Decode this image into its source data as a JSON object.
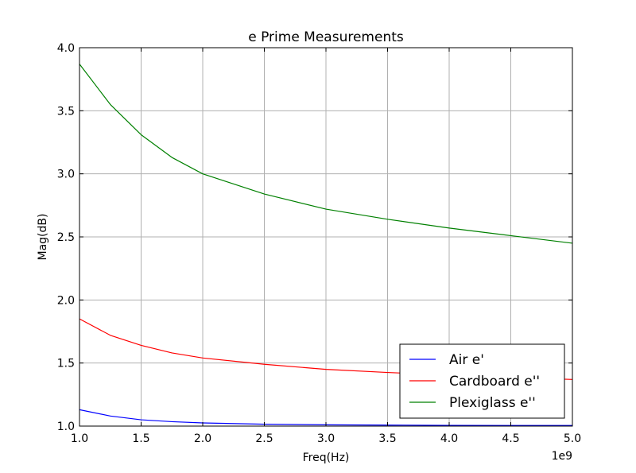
{
  "chart_data": {
    "type": "line",
    "title": "e Prime Measurements",
    "xlabel": "Freq(Hz)",
    "ylabel": "Mag(dB)",
    "x_offset_label": "1e9",
    "xlim": [
      1.0,
      5.0
    ],
    "ylim": [
      1.0,
      4.0
    ],
    "xticks": [
      "1.0",
      "1.5",
      "2.0",
      "2.5",
      "3.0",
      "3.5",
      "4.0",
      "4.5",
      "5.0"
    ],
    "yticks": [
      "1.0",
      "1.5",
      "2.0",
      "2.5",
      "3.0",
      "3.5",
      "4.0"
    ],
    "grid": true,
    "legend_position": "lower-right",
    "x": [
      1.0,
      1.25,
      1.5,
      1.75,
      2.0,
      2.5,
      3.0,
      3.5,
      4.0,
      4.5,
      5.0
    ],
    "series": [
      {
        "name": "Air e'",
        "color": "#0000ff",
        "values": [
          1.13,
          1.08,
          1.05,
          1.035,
          1.025,
          1.015,
          1.01,
          1.008,
          1.006,
          1.005,
          1.005
        ]
      },
      {
        "name": "Cardboard e''",
        "color": "#ff0000",
        "values": [
          1.85,
          1.72,
          1.64,
          1.58,
          1.54,
          1.49,
          1.45,
          1.425,
          1.405,
          1.385,
          1.37
        ]
      },
      {
        "name": "Plexiglass e''",
        "color": "#008000",
        "values": [
          3.87,
          3.55,
          3.31,
          3.13,
          3.0,
          2.84,
          2.72,
          2.64,
          2.57,
          2.51,
          2.45
        ]
      }
    ]
  }
}
